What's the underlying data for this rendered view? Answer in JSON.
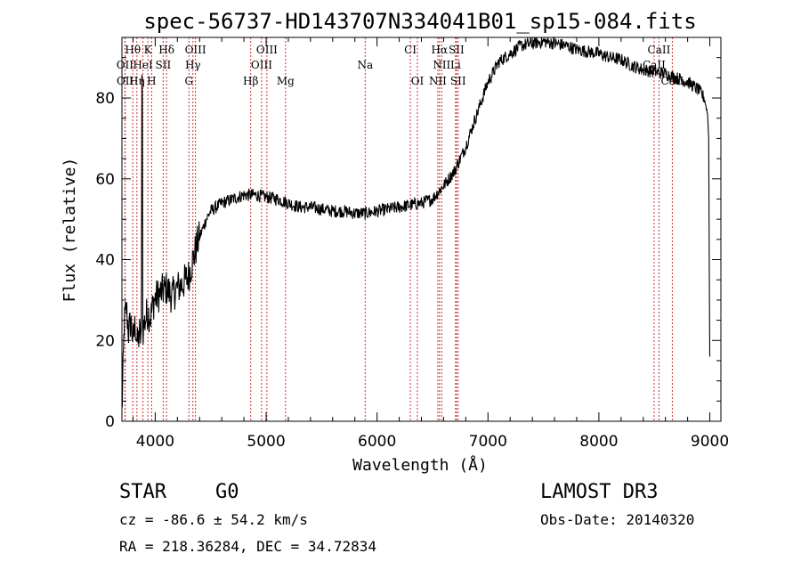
{
  "chart_data": {
    "type": "line",
    "title": "spec-56737-HD143707N334041B01_sp15-084.fits",
    "xlabel": "Wavelength (Å)",
    "ylabel": "Flux (relative)",
    "xlim": [
      3700,
      9100
    ],
    "ylim": [
      0,
      95
    ],
    "x_ticks": [
      4000,
      5000,
      6000,
      7000,
      8000,
      9000
    ],
    "y_ticks": [
      0,
      20,
      40,
      60,
      80
    ],
    "x_tick_labels": [
      "4000",
      "5000",
      "6000",
      "7000",
      "8000",
      "9000"
    ],
    "y_tick_labels": [
      "0",
      "20",
      "40",
      "60",
      "80"
    ],
    "spectrum_anchors": [
      [
        3700,
        2
      ],
      [
        3710,
        12
      ],
      [
        3720,
        24
      ],
      [
        3740,
        28
      ],
      [
        3760,
        22
      ],
      [
        3780,
        25
      ],
      [
        3800,
        20
      ],
      [
        3820,
        24
      ],
      [
        3840,
        19
      ],
      [
        3860,
        22
      ],
      [
        3875,
        20
      ],
      [
        3880,
        84
      ],
      [
        3884,
        84
      ],
      [
        3888,
        22
      ],
      [
        3900,
        24
      ],
      [
        3930,
        27
      ],
      [
        3960,
        26
      ],
      [
        3990,
        30
      ],
      [
        4020,
        31
      ],
      [
        4060,
        32
      ],
      [
        4100,
        33
      ],
      [
        4150,
        31
      ],
      [
        4200,
        33
      ],
      [
        4250,
        34
      ],
      [
        4300,
        36
      ],
      [
        4340,
        40
      ],
      [
        4380,
        44
      ],
      [
        4420,
        47
      ],
      [
        4460,
        50
      ],
      [
        4500,
        52
      ],
      [
        4600,
        54
      ],
      [
        4700,
        55
      ],
      [
        4800,
        56
      ],
      [
        4900,
        56
      ],
      [
        5000,
        55.5
      ],
      [
        5100,
        55
      ],
      [
        5200,
        54
      ],
      [
        5300,
        53
      ],
      [
        5400,
        53
      ],
      [
        5500,
        52.5
      ],
      [
        5600,
        52
      ],
      [
        5700,
        52
      ],
      [
        5800,
        51.5
      ],
      [
        5900,
        51.5
      ],
      [
        6000,
        52
      ],
      [
        6100,
        52.5
      ],
      [
        6200,
        53
      ],
      [
        6300,
        53.5
      ],
      [
        6400,
        54
      ],
      [
        6500,
        55
      ],
      [
        6560,
        57
      ],
      [
        6620,
        59
      ],
      [
        6700,
        62
      ],
      [
        6800,
        68
      ],
      [
        6900,
        76
      ],
      [
        7000,
        84
      ],
      [
        7100,
        89
      ],
      [
        7200,
        91
      ],
      [
        7300,
        93
      ],
      [
        7400,
        93.5
      ],
      [
        7500,
        94
      ],
      [
        7600,
        93.5
      ],
      [
        7700,
        93
      ],
      [
        7800,
        92
      ],
      [
        7900,
        91.5
      ],
      [
        8000,
        91
      ],
      [
        8100,
        90
      ],
      [
        8200,
        89.5
      ],
      [
        8300,
        88
      ],
      [
        8400,
        87
      ],
      [
        8500,
        86.5
      ],
      [
        8600,
        86
      ],
      [
        8700,
        85
      ],
      [
        8800,
        84
      ],
      [
        8900,
        82
      ],
      [
        8950,
        80
      ],
      [
        8980,
        76
      ],
      [
        8990,
        70
      ],
      [
        8995,
        40
      ],
      [
        9000,
        16
      ]
    ],
    "spectral_lines": [
      {
        "label": "Hθ",
        "wave": 3798,
        "row": 1
      },
      {
        "label": "K",
        "wave": 3934,
        "row": 1
      },
      {
        "label": "Hδ",
        "wave": 4102,
        "row": 1
      },
      {
        "label": "OIII",
        "wave": 4363,
        "row": 1
      },
      {
        "label": "OIII",
        "wave": 5007,
        "row": 1
      },
      {
        "label": "CI",
        "wave": 6300,
        "row": 1
      },
      {
        "label": "Hα",
        "wave": 6563,
        "row": 1
      },
      {
        "label": "SII",
        "wave": 6716,
        "row": 1
      },
      {
        "label": "CaII",
        "wave": 8542,
        "row": 1
      },
      {
        "label": "OII",
        "wave": 3727,
        "row": 2
      },
      {
        "label": "HeI",
        "wave": 3889,
        "row": 2
      },
      {
        "label": "SII",
        "wave": 4072,
        "row": 2
      },
      {
        "label": "Hγ",
        "wave": 4340,
        "row": 2
      },
      {
        "label": "OIII",
        "wave": 4959,
        "row": 2
      },
      {
        "label": "NII",
        "wave": 6583,
        "row": 2
      },
      {
        "label": "Li",
        "wave": 6708,
        "row": 2
      },
      {
        "label": "CaII",
        "wave": 8498,
        "row": 2
      },
      {
        "label": "OII",
        "wave": 3729,
        "row": 3
      },
      {
        "label": "Hη",
        "wave": 3835,
        "row": 3
      },
      {
        "label": "H",
        "wave": 3968,
        "row": 3
      },
      {
        "label": "G",
        "wave": 4304,
        "row": 3
      },
      {
        "label": "Hβ",
        "wave": 4861,
        "row": 3
      },
      {
        "label": "Mg",
        "wave": 5175,
        "row": 3
      },
      {
        "label": "Na",
        "wave": 5893,
        "row": 2
      },
      {
        "label": "OI",
        "wave": 6364,
        "row": 3
      },
      {
        "label": "NII",
        "wave": 6548,
        "row": 3
      },
      {
        "label": "SII",
        "wave": 6731,
        "row": 3
      },
      {
        "label": "CaII",
        "wave": 8662,
        "row": 3
      }
    ],
    "line_color": "#000000",
    "marker_color": "#cc3333"
  },
  "info": {
    "object_class": "STAR",
    "subclass": "G0",
    "survey": "LAMOST DR3",
    "redshift": "cz = -86.6 ± 54.2 km/s",
    "obs_date": "Obs-Date: 20140320",
    "coords": "RA = 218.36284, DEC =  34.72834"
  }
}
